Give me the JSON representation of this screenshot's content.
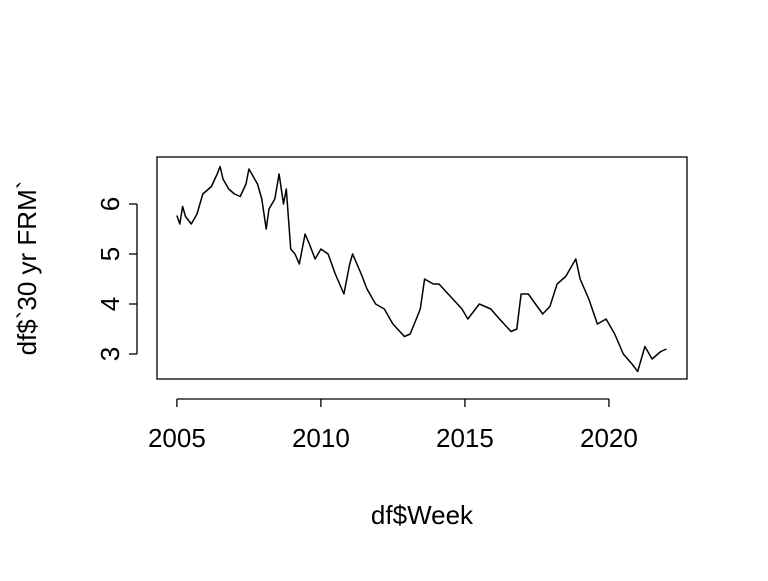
{
  "chart_data": {
    "type": "line",
    "x_label": "df$Week",
    "y_label": "df$`30 yr FRM`",
    "x": [
      2005.0,
      2005.1,
      2005.2,
      2005.3,
      2005.5,
      2005.7,
      2005.9,
      2006.0,
      2006.2,
      2006.4,
      2006.5,
      2006.6,
      2006.8,
      2007.0,
      2007.2,
      2007.4,
      2007.5,
      2007.6,
      2007.8,
      2007.95,
      2008.1,
      2008.2,
      2008.4,
      2008.55,
      2008.7,
      2008.8,
      2008.95,
      2009.1,
      2009.25,
      2009.45,
      2009.6,
      2009.8,
      2010.0,
      2010.25,
      2010.5,
      2010.8,
      2011.0,
      2011.1,
      2011.4,
      2011.6,
      2011.9,
      2012.2,
      2012.5,
      2012.9,
      2013.1,
      2013.45,
      2013.6,
      2013.9,
      2014.1,
      2014.5,
      2014.9,
      2015.1,
      2015.5,
      2015.9,
      2016.2,
      2016.6,
      2016.8,
      2016.95,
      2017.2,
      2017.7,
      2017.95,
      2018.2,
      2018.5,
      2018.85,
      2019.0,
      2019.3,
      2019.6,
      2019.9,
      2020.2,
      2020.5,
      2020.8,
      2021.0,
      2021.25,
      2021.5,
      2021.8,
      2022.0
    ],
    "series": [
      {
        "color": "#000000",
        "values": [
          5.77,
          5.6,
          5.95,
          5.75,
          5.6,
          5.8,
          6.2,
          6.25,
          6.35,
          6.6,
          6.75,
          6.5,
          6.3,
          6.2,
          6.15,
          6.4,
          6.7,
          6.6,
          6.4,
          6.1,
          5.5,
          5.9,
          6.1,
          6.6,
          6.0,
          6.3,
          5.1,
          5.0,
          4.8,
          5.4,
          5.2,
          4.9,
          5.1,
          5.0,
          4.6,
          4.2,
          4.8,
          5.0,
          4.6,
          4.3,
          4.0,
          3.9,
          3.6,
          3.35,
          3.4,
          3.9,
          4.5,
          4.4,
          4.4,
          4.15,
          3.9,
          3.7,
          4.0,
          3.9,
          3.7,
          3.45,
          3.5,
          4.2,
          4.2,
          3.8,
          3.95,
          4.4,
          4.55,
          4.9,
          4.5,
          4.1,
          3.6,
          3.7,
          3.4,
          3.0,
          2.8,
          2.65,
          3.15,
          2.9,
          3.05,
          3.1
        ]
      }
    ],
    "xlim": [
      2004.31,
      2022.71
    ],
    "xticks": [
      2005,
      2010,
      2015,
      2020
    ],
    "ylim": [
      2.5,
      6.94
    ],
    "yticks": [
      3,
      4,
      5,
      6
    ]
  }
}
